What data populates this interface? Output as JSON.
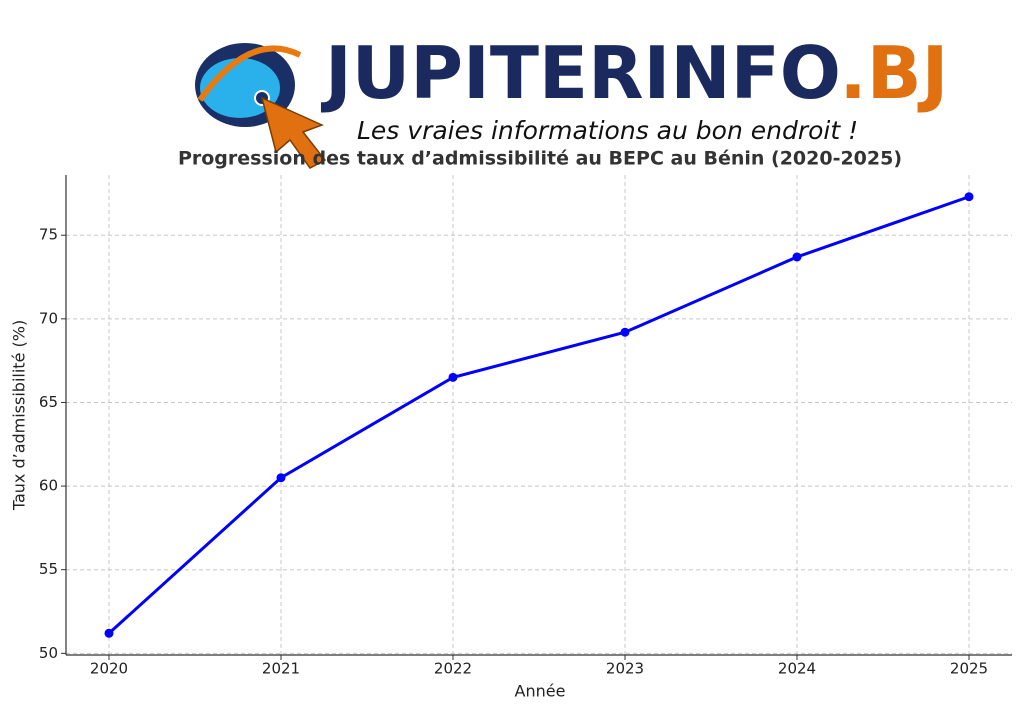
{
  "logo": {
    "name": "JUPITERINFO",
    "domain": ".BJ",
    "tagline": "Les vraies informations au bon endroit !"
  },
  "chart_data": {
    "type": "line",
    "title": "Progression des taux d’admissibilité au BEPC au Bénin (2020-2025)",
    "x_label": "Année",
    "y_label": "Taux d’admissibilité (%)",
    "x": [
      2020,
      2021,
      2022,
      2023,
      2024,
      2025
    ],
    "values": [
      51.2,
      60.5,
      66.5,
      69.2,
      73.7,
      77.3
    ],
    "color": "#0000ff",
    "xlim": [
      2019.75,
      2025.25
    ],
    "xticks": [
      2020,
      2021,
      2022,
      2023,
      2024,
      2025
    ],
    "ylim": [
      49.9,
      78.6
    ],
    "yticks": [
      50,
      55,
      60,
      65,
      70,
      75
    ],
    "grid": true
  }
}
